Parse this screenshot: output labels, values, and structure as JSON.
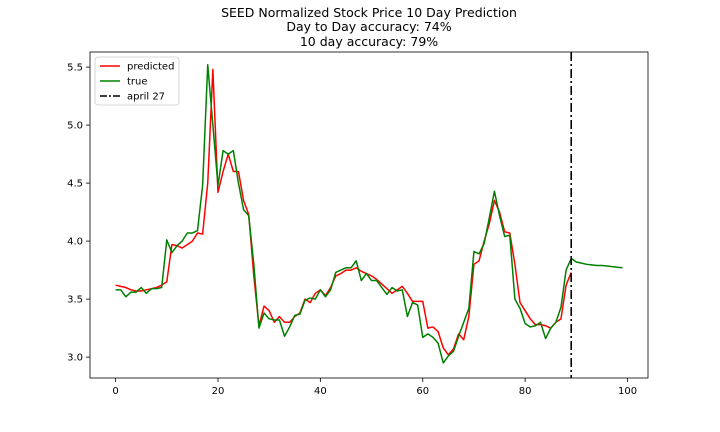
{
  "chart_data": {
    "type": "line",
    "title_lines": [
      "SEED Normalized Stock Price 10 Day Prediction",
      "Day to Day accuracy: 74%",
      "10 day accuracy: 79%"
    ],
    "xlabel": "",
    "ylabel": "",
    "xlim": [
      -5,
      104
    ],
    "ylim": [
      2.82,
      5.63
    ],
    "x_ticks": [
      0,
      20,
      40,
      60,
      80,
      100
    ],
    "y_ticks": [
      3.0,
      3.5,
      4.0,
      4.5,
      5.0,
      5.5
    ],
    "x_tick_labels": [
      "0",
      "20",
      "40",
      "60",
      "80",
      "100"
    ],
    "y_tick_labels": [
      "3.0",
      "3.5",
      "4.0",
      "4.5",
      "5.0",
      "5.5"
    ],
    "grid": false,
    "legend_position": "top-left",
    "series": [
      {
        "name": "predicted",
        "color": "#ff0000",
        "x": [
          0,
          1,
          2,
          3,
          4,
          5,
          6,
          7,
          8,
          9,
          10,
          11,
          12,
          13,
          14,
          15,
          16,
          17,
          18,
          19,
          20,
          21,
          22,
          23,
          24,
          25,
          26,
          27,
          28,
          29,
          30,
          31,
          32,
          33,
          34,
          35,
          36,
          37,
          38,
          39,
          40,
          41,
          42,
          43,
          44,
          45,
          46,
          47,
          48,
          49,
          50,
          51,
          52,
          53,
          54,
          55,
          56,
          57,
          58,
          59,
          60,
          61,
          62,
          63,
          64,
          65,
          66,
          67,
          68,
          69,
          70,
          71,
          72,
          73,
          74,
          75,
          76,
          77,
          78,
          79,
          80,
          81,
          82,
          83,
          84,
          85,
          86,
          87,
          88,
          89
        ],
        "y": [
          3.62,
          3.61,
          3.6,
          3.58,
          3.57,
          3.57,
          3.58,
          3.59,
          3.6,
          3.62,
          3.65,
          3.97,
          3.96,
          3.94,
          3.97,
          4.0,
          4.07,
          4.06,
          4.5,
          5.48,
          4.42,
          4.6,
          4.75,
          4.6,
          4.6,
          4.35,
          4.23,
          3.7,
          3.27,
          3.44,
          3.4,
          3.3,
          3.35,
          3.3,
          3.3,
          3.35,
          3.38,
          3.5,
          3.47,
          3.55,
          3.58,
          3.53,
          3.6,
          3.7,
          3.72,
          3.75,
          3.75,
          3.77,
          3.74,
          3.72,
          3.7,
          3.67,
          3.63,
          3.59,
          3.55,
          3.58,
          3.61,
          3.55,
          3.48,
          3.48,
          3.48,
          3.25,
          3.26,
          3.22,
          3.08,
          3.02,
          3.07,
          3.2,
          3.15,
          3.35,
          3.8,
          3.83,
          4.0,
          4.15,
          4.35,
          4.25,
          4.08,
          4.07,
          3.8,
          3.47,
          3.4,
          3.33,
          3.28,
          3.28,
          3.27,
          3.25,
          3.3,
          3.33,
          3.62,
          3.73
        ]
      },
      {
        "name": "true",
        "color": "#008000",
        "x": [
          0,
          1,
          2,
          3,
          4,
          5,
          6,
          7,
          8,
          9,
          10,
          11,
          12,
          13,
          14,
          15,
          16,
          17,
          18,
          19,
          20,
          21,
          22,
          23,
          24,
          25,
          26,
          27,
          28,
          29,
          30,
          31,
          32,
          33,
          34,
          35,
          36,
          37,
          38,
          39,
          40,
          41,
          42,
          43,
          44,
          45,
          46,
          47,
          48,
          49,
          50,
          51,
          52,
          53,
          54,
          55,
          56,
          57,
          58,
          59,
          60,
          61,
          62,
          63,
          64,
          65,
          66,
          67,
          68,
          69,
          70,
          71,
          72,
          73,
          74,
          75,
          76,
          77,
          78,
          79,
          80,
          81,
          82,
          83,
          84,
          85,
          86,
          87,
          88,
          89,
          90,
          91,
          92,
          93,
          94,
          95,
          96,
          97,
          98,
          99
        ],
        "y": [
          3.58,
          3.58,
          3.52,
          3.56,
          3.56,
          3.6,
          3.55,
          3.59,
          3.59,
          3.6,
          4.01,
          3.9,
          3.96,
          4.0,
          4.07,
          4.07,
          4.09,
          4.48,
          5.52,
          5.0,
          4.48,
          4.78,
          4.75,
          4.78,
          4.5,
          4.27,
          4.22,
          3.8,
          3.25,
          3.38,
          3.33,
          3.32,
          3.32,
          3.18,
          3.26,
          3.36,
          3.37,
          3.49,
          3.51,
          3.5,
          3.58,
          3.52,
          3.58,
          3.73,
          3.75,
          3.77,
          3.77,
          3.83,
          3.66,
          3.72,
          3.66,
          3.66,
          3.6,
          3.54,
          3.6,
          3.57,
          3.58,
          3.35,
          3.47,
          3.45,
          3.17,
          3.2,
          3.17,
          3.12,
          2.95,
          3.01,
          3.05,
          3.18,
          3.3,
          3.42,
          3.91,
          3.89,
          3.98,
          4.2,
          4.43,
          4.22,
          4.04,
          4.05,
          3.5,
          3.42,
          3.29,
          3.26,
          3.27,
          3.3,
          3.16,
          3.25,
          3.3,
          3.43,
          3.75,
          3.85,
          3.82,
          3.81,
          3.8,
          3.795,
          3.79,
          3.79,
          3.785,
          3.78,
          3.775,
          3.77
        ]
      }
    ],
    "vline": {
      "name": "april 27",
      "x": 89,
      "color": "#000000",
      "style": "dashdot"
    }
  }
}
